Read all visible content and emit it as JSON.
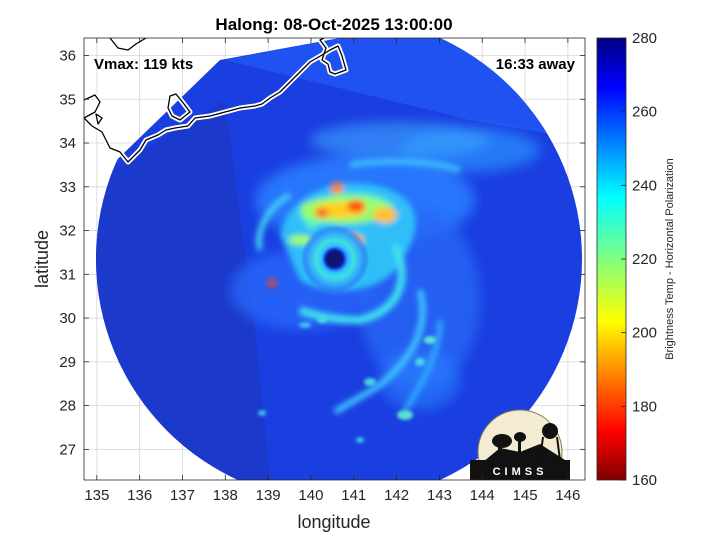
{
  "chart_data": {
    "type": "heatmap",
    "title": "Halong: 08-Oct-2025 13:00:00",
    "xlabel": "longitude",
    "ylabel": "latitude",
    "xlim": [
      134.7,
      146.4
    ],
    "ylim": [
      26.3,
      36.4
    ],
    "xticks": [
      135,
      136,
      137,
      138,
      139,
      140,
      141,
      142,
      143,
      144,
      145,
      146
    ],
    "yticks": [
      27,
      28,
      29,
      30,
      31,
      32,
      33,
      34,
      35,
      36
    ],
    "grid": true,
    "annotations": {
      "left": "Vmax: 119 kts",
      "right": "16:33 away"
    },
    "storm_center": {
      "lon": 140.45,
      "lat": 31.35
    },
    "colorbar": {
      "label": "Brightness Temp - Horizontal Polarization",
      "range": [
        160,
        280
      ],
      "ticks": [
        160,
        180,
        200,
        220,
        240,
        260,
        280
      ],
      "colormap": "jet"
    },
    "logo_text": "CIMSS"
  }
}
